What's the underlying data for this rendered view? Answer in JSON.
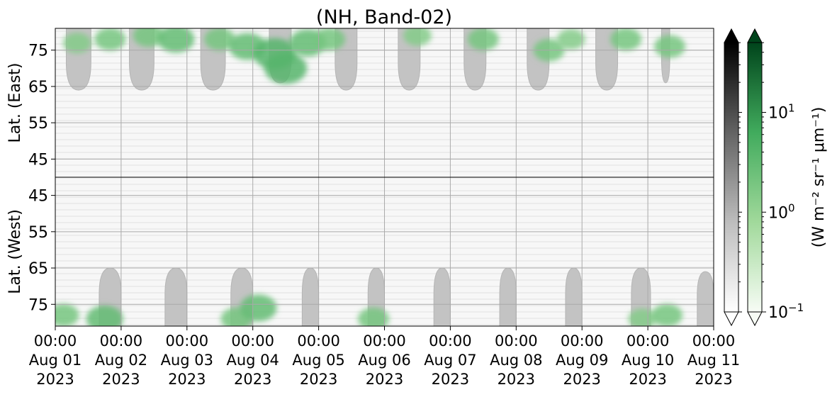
{
  "chart_data": {
    "type": "heatmap",
    "title": "(NH, Band-02)",
    "ylabel_top": "Lat. (East)",
    "ylabel_bottom": "Lat. (West)",
    "y_ticks_east": [
      45,
      55,
      65,
      75
    ],
    "y_ticks_west": [
      75,
      65,
      55,
      45
    ],
    "y_tick_labels_east": [
      "45",
      "55",
      "65",
      "75"
    ],
    "y_tick_labels_west": [
      "75",
      "65",
      "55",
      "45"
    ],
    "lat_range": [
      40,
      81
    ],
    "x_ticks": [
      {
        "time": "00:00",
        "date": "Aug 01",
        "year": "2023"
      },
      {
        "time": "00:00",
        "date": "Aug 02",
        "year": "2023"
      },
      {
        "time": "00:00",
        "date": "Aug 03",
        "year": "2023"
      },
      {
        "time": "00:00",
        "date": "Aug 04",
        "year": "2023"
      },
      {
        "time": "00:00",
        "date": "Aug 05",
        "year": "2023"
      },
      {
        "time": "00:00",
        "date": "Aug 06",
        "year": "2023"
      },
      {
        "time": "00:00",
        "date": "Aug 07",
        "year": "2023"
      },
      {
        "time": "00:00",
        "date": "Aug 08",
        "year": "2023"
      },
      {
        "time": "00:00",
        "date": "Aug 09",
        "year": "2023"
      },
      {
        "time": "00:00",
        "date": "Aug 10",
        "year": "2023"
      },
      {
        "time": "00:00",
        "date": "Aug 11",
        "year": "2023"
      }
    ],
    "grid": true,
    "colorbars": [
      {
        "name": "gray",
        "colors": [
          "#ffffff",
          "#bdbdbd",
          "#636363",
          "#000000"
        ]
      },
      {
        "name": "green",
        "colors": [
          "#f7fcf5",
          "#a1d99b",
          "#41ab5d",
          "#00441b"
        ]
      }
    ],
    "colorbar_tick_labels": [
      {
        "base": "10",
        "exp": "1",
        "value": 10
      },
      {
        "base": "10",
        "exp": "0",
        "value": 1
      },
      {
        "base": "10",
        "exp": "−1",
        "value": 0.1
      }
    ],
    "colorbar_range_log10": [
      -1,
      1.7
    ],
    "colorbar_label": "(W m⁻² sr⁻¹ μm⁻¹)",
    "dark_regions_east": [
      {
        "start": "2023-08-01 04:00",
        "end": "2023-08-01 13:00",
        "min_lat": 64
      },
      {
        "start": "2023-08-02 03:00",
        "end": "2023-08-02 12:00",
        "min_lat": 64
      },
      {
        "start": "2023-08-03 05:00",
        "end": "2023-08-03 14:00",
        "min_lat": 64
      },
      {
        "start": "2023-08-04 06:00",
        "end": "2023-08-04 14:00",
        "min_lat": 66
      },
      {
        "start": "2023-08-05 06:00",
        "end": "2023-08-05 14:00",
        "min_lat": 64
      },
      {
        "start": "2023-08-06 05:00",
        "end": "2023-08-06 13:00",
        "min_lat": 64
      },
      {
        "start": "2023-08-07 05:00",
        "end": "2023-08-07 13:00",
        "min_lat": 64
      },
      {
        "start": "2023-08-08 04:00",
        "end": "2023-08-08 12:00",
        "min_lat": 64
      },
      {
        "start": "2023-08-09 05:00",
        "end": "2023-08-09 13:00",
        "min_lat": 64
      },
      {
        "start": "2023-08-10 05:00",
        "end": "2023-08-10 08:00",
        "min_lat": 66
      }
    ],
    "dark_regions_west": [
      {
        "start": "2023-08-01 16:00",
        "end": "2023-08-02 00:00",
        "min_lat": 65
      },
      {
        "start": "2023-08-02 16:00",
        "end": "2023-08-03 00:00",
        "min_lat": 65
      },
      {
        "start": "2023-08-03 16:00",
        "end": "2023-08-04 00:00",
        "min_lat": 65
      },
      {
        "start": "2023-08-04 18:00",
        "end": "2023-08-05 00:00",
        "min_lat": 65
      },
      {
        "start": "2023-08-05 18:00",
        "end": "2023-08-06 00:00",
        "min_lat": 65
      },
      {
        "start": "2023-08-06 18:00",
        "end": "2023-08-07 00:00",
        "min_lat": 65
      },
      {
        "start": "2023-08-07 18:00",
        "end": "2023-08-08 00:00",
        "min_lat": 65
      },
      {
        "start": "2023-08-08 18:00",
        "end": "2023-08-09 00:00",
        "min_lat": 65
      },
      {
        "start": "2023-08-09 18:00",
        "end": "2023-08-10 01:00",
        "min_lat": 65
      },
      {
        "start": "2023-08-10 18:00",
        "end": "2023-08-11 00:00",
        "min_lat": 66
      }
    ],
    "aurora_patches": [
      {
        "hemisphere": "east",
        "time": "2023-08-01 08:00",
        "lat": 77,
        "intensity": 1.5
      },
      {
        "hemisphere": "east",
        "time": "2023-08-01 20:00",
        "lat": 78,
        "intensity": 2
      },
      {
        "hemisphere": "east",
        "time": "2023-08-02 10:00",
        "lat": 79,
        "intensity": 2
      },
      {
        "hemisphere": "east",
        "time": "2023-08-02 20:00",
        "lat": 78,
        "intensity": 3
      },
      {
        "hemisphere": "east",
        "time": "2023-08-03 12:00",
        "lat": 78,
        "intensity": 2
      },
      {
        "hemisphere": "east",
        "time": "2023-08-03 22:00",
        "lat": 76,
        "intensity": 3
      },
      {
        "hemisphere": "east",
        "time": "2023-08-04 08:00",
        "lat": 74,
        "intensity": 4
      },
      {
        "hemisphere": "east",
        "time": "2023-08-04 12:00",
        "lat": 70,
        "intensity": 4
      },
      {
        "hemisphere": "east",
        "time": "2023-08-04 20:00",
        "lat": 77,
        "intensity": 3
      },
      {
        "hemisphere": "east",
        "time": "2023-08-05 04:00",
        "lat": 78,
        "intensity": 2
      },
      {
        "hemisphere": "east",
        "time": "2023-08-06 12:00",
        "lat": 79,
        "intensity": 1.5
      },
      {
        "hemisphere": "east",
        "time": "2023-08-07 12:00",
        "lat": 78,
        "intensity": 2
      },
      {
        "hemisphere": "east",
        "time": "2023-08-08 12:00",
        "lat": 75,
        "intensity": 2
      },
      {
        "hemisphere": "east",
        "time": "2023-08-08 20:00",
        "lat": 78,
        "intensity": 1.5
      },
      {
        "hemisphere": "east",
        "time": "2023-08-09 16:00",
        "lat": 78,
        "intensity": 2
      },
      {
        "hemisphere": "east",
        "time": "2023-08-10 08:00",
        "lat": 76,
        "intensity": 2
      },
      {
        "hemisphere": "west",
        "time": "2023-08-01 03:00",
        "lat": 78,
        "intensity": 2
      },
      {
        "hemisphere": "west",
        "time": "2023-08-01 18:00",
        "lat": 79,
        "intensity": 3
      },
      {
        "hemisphere": "west",
        "time": "2023-08-03 18:00",
        "lat": 79,
        "intensity": 2
      },
      {
        "hemisphere": "west",
        "time": "2023-08-04 02:00",
        "lat": 76,
        "intensity": 3
      },
      {
        "hemisphere": "west",
        "time": "2023-08-05 20:00",
        "lat": 79,
        "intensity": 2
      },
      {
        "hemisphere": "west",
        "time": "2023-08-09 22:00",
        "lat": 79,
        "intensity": 1.5
      },
      {
        "hemisphere": "west",
        "time": "2023-08-10 07:00",
        "lat": 78,
        "intensity": 2
      }
    ]
  }
}
